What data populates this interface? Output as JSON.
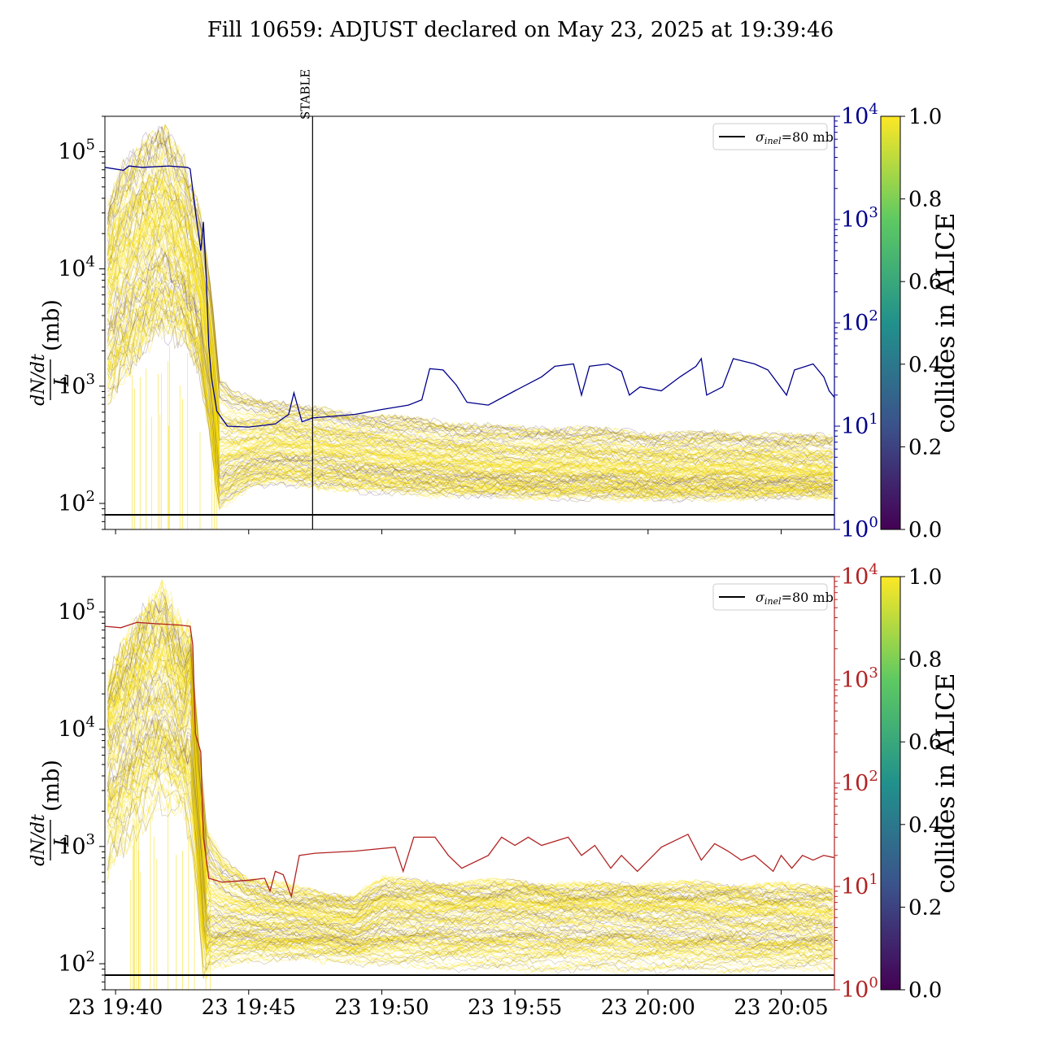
{
  "figure": {
    "title": "Fill 10659: ADJUST declared on May 23, 2025 at 19:39:46"
  },
  "colors": {
    "axis": "#000000",
    "top_right_axis": "#00008b",
    "bottom_right_axis": "#b22222",
    "band_yellow": "#f5dc00",
    "band_dark": "#6b4e16",
    "band_purple": "#4b2a7a",
    "sigma_line": "#000000",
    "viridis": [
      "#440154",
      "#3b528b",
      "#21918c",
      "#5ec962",
      "#fde725"
    ]
  },
  "chart_data": [
    {
      "type": "line",
      "panel": "top",
      "ylabel_num": "dN/dt",
      "ylabel_den": "L",
      "ylabel_unit": "(mb)",
      "yscale": "log",
      "ylim": [
        60,
        200000
      ],
      "yticks": [
        {
          "v": 100,
          "base": "10",
          "exp": "2"
        },
        {
          "v": 1000,
          "base": "10",
          "exp": "3"
        },
        {
          "v": 10000,
          "base": "10",
          "exp": "4"
        },
        {
          "v": 100000,
          "base": "10",
          "exp": "5"
        }
      ],
      "y2scale": "log",
      "y2lim": [
        1,
        10000
      ],
      "y2ticks": [
        {
          "v": 1,
          "base": "10",
          "exp": "0"
        },
        {
          "v": 10,
          "base": "10",
          "exp": "1"
        },
        {
          "v": 100,
          "base": "10",
          "exp": "2"
        },
        {
          "v": 1000,
          "base": "10",
          "exp": "3"
        },
        {
          "v": 10000,
          "base": "10",
          "exp": "4"
        }
      ],
      "xlim_minutes": [
        -0.4,
        27.0
      ],
      "x_unit": "minutes after 19:40",
      "stable_marker": {
        "label": "STABLE",
        "x": 7.4
      },
      "legend": {
        "label_main": "σ",
        "label_sub": "inel",
        "label_rest": "=80 mb",
        "position": "upper right"
      },
      "sigma_inel_mb": 80,
      "band_upper": [
        [
          -0.3,
          30000
        ],
        [
          0.2,
          60000
        ],
        [
          1.0,
          100000
        ],
        [
          1.8,
          150000
        ],
        [
          2.6,
          70000
        ],
        [
          3.2,
          25000
        ],
        [
          3.6,
          6000
        ],
        [
          3.9,
          1100
        ],
        [
          4.4,
          850
        ],
        [
          6,
          700
        ],
        [
          7.4,
          620
        ],
        [
          9,
          560
        ],
        [
          12,
          480
        ],
        [
          15,
          420
        ],
        [
          17.5,
          420
        ],
        [
          20,
          380
        ],
        [
          23,
          380
        ],
        [
          26.9,
          360
        ]
      ],
      "band_mid": [
        [
          -0.3,
          8000
        ],
        [
          1.0,
          20000
        ],
        [
          1.8,
          28000
        ],
        [
          2.6,
          14000
        ],
        [
          3.2,
          6000
        ],
        [
          3.6,
          1500
        ],
        [
          3.9,
          260
        ],
        [
          5,
          300
        ],
        [
          6,
          330
        ],
        [
          7.4,
          300
        ],
        [
          9,
          270
        ],
        [
          11,
          240
        ],
        [
          13,
          220
        ],
        [
          15,
          200
        ],
        [
          17.5,
          210
        ],
        [
          20,
          190
        ],
        [
          23,
          195
        ],
        [
          26.9,
          185
        ]
      ],
      "band_lower": [
        [
          -0.3,
          700
        ],
        [
          0.6,
          1500
        ],
        [
          1.6,
          3000
        ],
        [
          2.6,
          2500
        ],
        [
          3.2,
          1200
        ],
        [
          3.6,
          300
        ],
        [
          3.85,
          90
        ],
        [
          5,
          140
        ],
        [
          6,
          150
        ],
        [
          7.4,
          140
        ],
        [
          9,
          130
        ],
        [
          12,
          120
        ],
        [
          15,
          115
        ],
        [
          18,
          112
        ],
        [
          21,
          110
        ],
        [
          26.9,
          115
        ]
      ],
      "secondary_series": {
        "name": "",
        "color_key": "top_right_axis",
        "points": [
          [
            -0.4,
            3200
          ],
          [
            0.3,
            3000
          ],
          [
            0.5,
            3300
          ],
          [
            1.0,
            3200
          ],
          [
            2.0,
            3300
          ],
          [
            2.7,
            3200
          ],
          [
            2.8,
            3100
          ],
          [
            3.0,
            1200
          ],
          [
            3.2,
            500
          ],
          [
            3.3,
            950
          ],
          [
            3.4,
            300
          ],
          [
            3.5,
            60
          ],
          [
            3.6,
            30
          ],
          [
            3.8,
            14
          ],
          [
            4.2,
            10
          ],
          [
            5.0,
            9.8
          ],
          [
            6.0,
            10.5
          ],
          [
            6.5,
            13
          ],
          [
            6.7,
            21
          ],
          [
            7.0,
            11
          ],
          [
            7.4,
            12
          ],
          [
            9.0,
            13
          ],
          [
            10.0,
            14.5
          ],
          [
            11.0,
            16
          ],
          [
            11.5,
            18
          ],
          [
            11.8,
            36
          ],
          [
            12.3,
            35
          ],
          [
            12.8,
            25
          ],
          [
            13.2,
            17
          ],
          [
            14.0,
            16
          ],
          [
            15.0,
            22
          ],
          [
            16.0,
            30
          ],
          [
            16.5,
            38
          ],
          [
            17.2,
            40
          ],
          [
            17.5,
            20
          ],
          [
            17.8,
            38
          ],
          [
            18.5,
            40
          ],
          [
            19.0,
            34
          ],
          [
            19.3,
            20
          ],
          [
            19.7,
            24
          ],
          [
            20.5,
            22
          ],
          [
            21.2,
            30
          ],
          [
            21.8,
            38
          ],
          [
            22.0,
            45
          ],
          [
            22.2,
            20
          ],
          [
            22.8,
            24
          ],
          [
            23.2,
            45
          ],
          [
            24.0,
            40
          ],
          [
            24.5,
            35
          ],
          [
            25.2,
            20
          ],
          [
            25.5,
            35
          ],
          [
            26.2,
            40
          ],
          [
            26.6,
            30
          ],
          [
            26.8,
            22
          ],
          [
            27.0,
            19
          ]
        ]
      },
      "colorbar": {
        "label": "collides in ALICE",
        "min": 0.0,
        "max": 1.0,
        "ticks": [
          "0.0",
          "0.2",
          "0.4",
          "0.6",
          "0.8",
          "1.0"
        ]
      }
    },
    {
      "type": "line",
      "panel": "bottom",
      "ylabel_num": "dN/dt",
      "ylabel_den": "L",
      "ylabel_unit": "(mb)",
      "yscale": "log",
      "ylim": [
        60,
        200000
      ],
      "yticks": [
        {
          "v": 100,
          "base": "10",
          "exp": "2"
        },
        {
          "v": 1000,
          "base": "10",
          "exp": "3"
        },
        {
          "v": 10000,
          "base": "10",
          "exp": "4"
        },
        {
          "v": 100000,
          "base": "10",
          "exp": "5"
        }
      ],
      "y2scale": "log",
      "y2lim": [
        1,
        10000
      ],
      "y2ticks": [
        {
          "v": 1,
          "base": "10",
          "exp": "0"
        },
        {
          "v": 10,
          "base": "10",
          "exp": "1"
        },
        {
          "v": 100,
          "base": "10",
          "exp": "2"
        },
        {
          "v": 1000,
          "base": "10",
          "exp": "3"
        },
        {
          "v": 10000,
          "base": "10",
          "exp": "4"
        }
      ],
      "xlim_minutes": [
        -0.4,
        27.0
      ],
      "x_unit": "minutes after 19:40",
      "xticks": [
        {
          "v": 0,
          "label": "23 19:40"
        },
        {
          "v": 5,
          "label": "23 19:45"
        },
        {
          "v": 10,
          "label": "23 19:50"
        },
        {
          "v": 15,
          "label": "23 19:55"
        },
        {
          "v": 20,
          "label": "23 20:00"
        },
        {
          "v": 25,
          "label": "23 20:05"
        }
      ],
      "legend": {
        "label_main": "σ",
        "label_sub": "inel",
        "label_rest": "=80 mb",
        "position": "upper right"
      },
      "sigma_inel_mb": 80,
      "band_upper": [
        [
          -0.3,
          25000
        ],
        [
          0.3,
          50000
        ],
        [
          1.0,
          100000
        ],
        [
          1.8,
          160000
        ],
        [
          2.6,
          60000
        ],
        [
          2.8,
          70000
        ],
        [
          3.0,
          15000
        ],
        [
          3.4,
          1400
        ],
        [
          4.0,
          800
        ],
        [
          5.0,
          550
        ],
        [
          6.0,
          480
        ],
        [
          7.0,
          420
        ],
        [
          9.0,
          380
        ],
        [
          10.0,
          520
        ],
        [
          13.0,
          480
        ],
        [
          15.0,
          500
        ],
        [
          17.0,
          460
        ],
        [
          20.0,
          480
        ],
        [
          23.0,
          470
        ],
        [
          26.9,
          450
        ]
      ],
      "band_mid": [
        [
          -0.3,
          8000
        ],
        [
          1.0,
          20000
        ],
        [
          1.8,
          25000
        ],
        [
          2.6,
          15000
        ],
        [
          2.8,
          30000
        ],
        [
          3.0,
          5000
        ],
        [
          3.4,
          260
        ],
        [
          5.0,
          240
        ],
        [
          7.0,
          220
        ],
        [
          9.0,
          200
        ],
        [
          10.0,
          260
        ],
        [
          13.0,
          260
        ],
        [
          16.0,
          270
        ],
        [
          20.0,
          260
        ],
        [
          23.0,
          240
        ],
        [
          26.9,
          220
        ]
      ],
      "band_lower": [
        [
          -0.3,
          600
        ],
        [
          0.6,
          1200
        ],
        [
          1.6,
          2500
        ],
        [
          2.6,
          2000
        ],
        [
          3.0,
          600
        ],
        [
          3.3,
          90
        ],
        [
          5.0,
          110
        ],
        [
          8.0,
          110
        ],
        [
          10.0,
          100
        ],
        [
          12.0,
          95
        ],
        [
          16.0,
          90
        ],
        [
          20.0,
          90
        ],
        [
          24.0,
          88
        ],
        [
          26.9,
          95
        ]
      ],
      "secondary_series": {
        "name": "",
        "color_key": "bottom_right_axis",
        "points": [
          [
            -0.4,
            3300
          ],
          [
            0.2,
            3200
          ],
          [
            0.8,
            3600
          ],
          [
            1.5,
            3500
          ],
          [
            2.4,
            3400
          ],
          [
            2.8,
            3300
          ],
          [
            2.9,
            2200
          ],
          [
            3.0,
            300
          ],
          [
            3.2,
            200
          ],
          [
            3.3,
            30
          ],
          [
            3.5,
            12
          ],
          [
            4.0,
            11
          ],
          [
            5.0,
            11.5
          ],
          [
            5.6,
            12
          ],
          [
            5.8,
            9
          ],
          [
            6.0,
            14
          ],
          [
            6.3,
            13
          ],
          [
            6.6,
            8
          ],
          [
            6.9,
            20
          ],
          [
            7.5,
            21
          ],
          [
            9.0,
            22
          ],
          [
            10.5,
            24
          ],
          [
            10.8,
            14
          ],
          [
            11.2,
            30
          ],
          [
            12.0,
            30
          ],
          [
            12.5,
            20
          ],
          [
            13.0,
            15
          ],
          [
            14.0,
            20
          ],
          [
            14.5,
            30
          ],
          [
            15.0,
            25
          ],
          [
            15.5,
            30
          ],
          [
            16.0,
            25
          ],
          [
            17.0,
            30
          ],
          [
            17.5,
            20
          ],
          [
            18.0,
            25
          ],
          [
            18.6,
            15
          ],
          [
            19.0,
            20
          ],
          [
            19.6,
            14
          ],
          [
            20.5,
            24
          ],
          [
            21.5,
            32
          ],
          [
            22.0,
            18
          ],
          [
            22.5,
            26
          ],
          [
            23.0,
            22
          ],
          [
            23.5,
            18
          ],
          [
            24.0,
            20
          ],
          [
            24.7,
            14
          ],
          [
            25.0,
            20
          ],
          [
            25.4,
            15
          ],
          [
            25.8,
            20
          ],
          [
            26.2,
            18
          ],
          [
            26.6,
            20
          ],
          [
            27.0,
            19
          ]
        ]
      },
      "colorbar": {
        "label": "collides in ALICE",
        "min": 0.0,
        "max": 1.0,
        "ticks": [
          "0.0",
          "0.2",
          "0.4",
          "0.6",
          "0.8",
          "1.0"
        ]
      }
    }
  ]
}
